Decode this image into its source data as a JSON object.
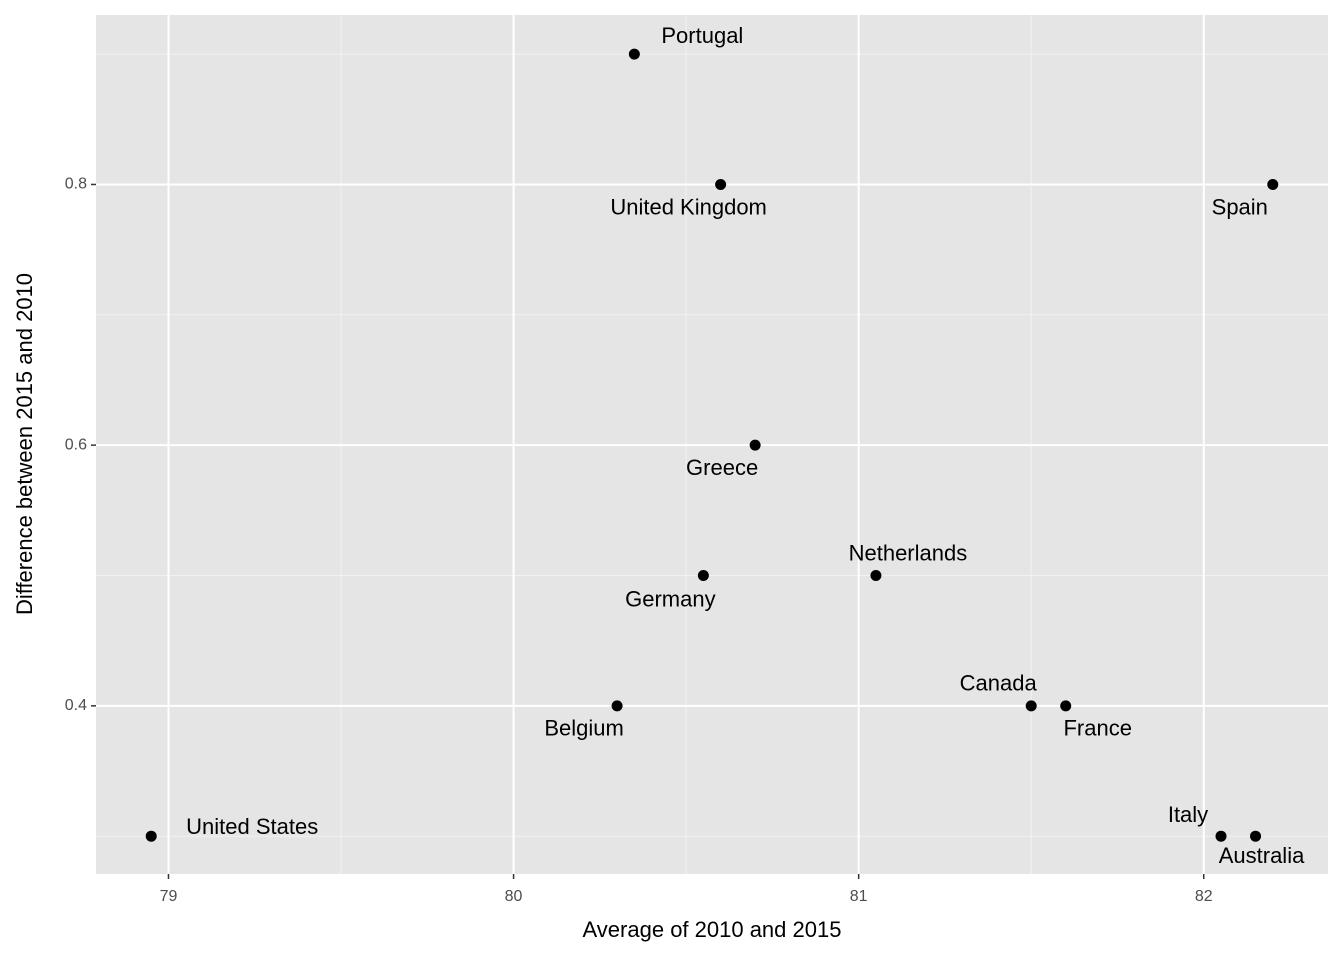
{
  "chart_data": {
    "type": "scatter",
    "x_label": "Average of 2010 and 2015",
    "y_label": "Difference between 2015 and 2010",
    "labels": [
      "Portugal",
      "United Kingdom",
      "Spain",
      "Greece",
      "Netherlands",
      "Germany",
      "Belgium",
      "Canada",
      "France",
      "Italy",
      "Australia",
      "United States"
    ],
    "x": [
      80.35,
      80.6,
      82.2,
      80.7,
      81.05,
      80.55,
      80.3,
      81.5,
      81.6,
      82.05,
      82.15,
      78.95
    ],
    "values": [
      0.9,
      0.8,
      0.8,
      0.6,
      0.5,
      0.5,
      0.4,
      0.4,
      0.4,
      0.3,
      0.3,
      0.3
    ],
    "color": "#000000",
    "xlim": [
      78.79,
      82.36
    ],
    "ylim": [
      0.271,
      0.93
    ],
    "xticks": [
      79,
      80,
      81,
      82
    ],
    "yticks": [
      0.4,
      0.6,
      0.8
    ],
    "x_minor_ticks": [
      79.5,
      80.5,
      81.5
    ],
    "y_minor_ticks": [
      0.3,
      0.5,
      0.7,
      0.9
    ],
    "grid": true
  }
}
